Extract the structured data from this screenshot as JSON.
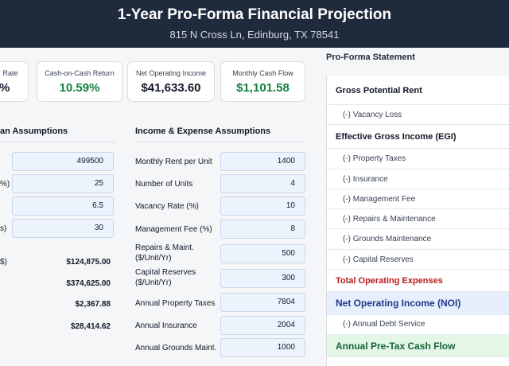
{
  "header": {
    "title": "1-Year Pro-Forma Financial Projection",
    "address": "815 N Cross Ln, Edinburg, TX 78541"
  },
  "cards": [
    {
      "label": "Rate",
      "value": "%"
    },
    {
      "label": "Cash-on-Cash Return",
      "value": "10.59%"
    },
    {
      "label": "Net Operating Income",
      "value": "$41,633.60"
    },
    {
      "label": "Monthly Cash Flow",
      "value": "$1,101.58"
    }
  ],
  "loan": {
    "title": "an Assumptions",
    "inputs": [
      {
        "label": "",
        "value": "499500"
      },
      {
        "label": "%)",
        "value": "25"
      },
      {
        "label": "",
        "value": "6.5"
      },
      {
        "label": "s)",
        "value": "30"
      }
    ],
    "calcs": [
      {
        "label": "$)",
        "value": "$124,875.00"
      },
      {
        "label": "",
        "value": "$374,625.00"
      },
      {
        "label": "",
        "value": "$2,367.88"
      },
      {
        "label": "",
        "value": "$28,414.62"
      }
    ]
  },
  "income": {
    "title": "Income & Expense Assumptions",
    "rows": [
      {
        "label": "Monthly Rent per Unit",
        "value": "1400"
      },
      {
        "label": "Number of Units",
        "value": "4"
      },
      {
        "label": "Vacancy Rate (%)",
        "value": "10"
      },
      {
        "label": "Management Fee (%)",
        "value": "8"
      },
      {
        "label": "Repairs & Maint. ($/Unit/Yr)",
        "value": "500"
      },
      {
        "label": "Capital Reserves ($/Unit/Yr)",
        "value": "300"
      },
      {
        "label": "Annual Property Taxes",
        "value": "7804"
      },
      {
        "label": "Annual Insurance",
        "value": "2004"
      },
      {
        "label": "Annual Grounds Maint.",
        "value": "1000"
      }
    ]
  },
  "proforma": {
    "title": "Pro-Forma Statement",
    "rows": [
      {
        "label": "Gross Potential Rent",
        "kind": "head"
      },
      {
        "label": "(-) Vacancy Loss",
        "kind": "sub"
      },
      {
        "label": "Effective Gross Income (EGI)",
        "kind": "head"
      },
      {
        "label": "(-) Property Taxes",
        "kind": "sub"
      },
      {
        "label": "(-) Insurance",
        "kind": "sub"
      },
      {
        "label": "(-) Management Fee",
        "kind": "sub"
      },
      {
        "label": "(-) Repairs & Maintenance",
        "kind": "sub"
      },
      {
        "label": "(-) Grounds Maintenance",
        "kind": "sub"
      },
      {
        "label": "(-) Capital Reserves",
        "kind": "sub"
      },
      {
        "label": "Total Operating Expenses",
        "kind": "red"
      },
      {
        "label": "Net Operating Income (NOI)",
        "kind": "noi"
      },
      {
        "label": "(-) Annual Debt Service",
        "kind": "sub"
      },
      {
        "label": "Annual Pre-Tax Cash Flow",
        "kind": "cash"
      }
    ]
  },
  "colors": {
    "header_bg": "#1f2a3c",
    "positive": "#15803d",
    "expense_total": "#b91c1c",
    "noi_bg": "#e7effd",
    "cashflow_bg": "#e3f6e8"
  }
}
